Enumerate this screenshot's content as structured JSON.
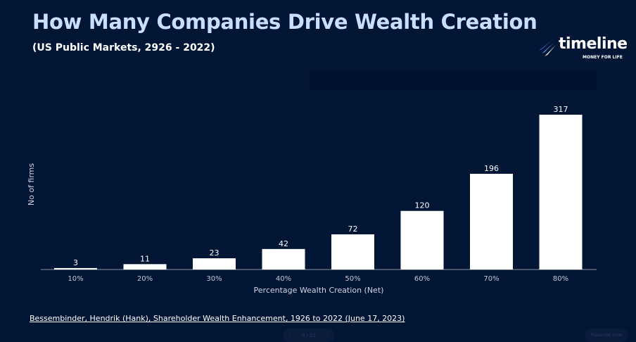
{
  "header": {
    "title": "How Many Companies Drive Wealth Creation",
    "subtitle": "(US Public Markets, 2926 - 2022)"
  },
  "logo": {
    "name": "timeline",
    "tagline": "MONEY FOR LIFE"
  },
  "chart_data": {
    "type": "bar",
    "categories": [
      "10%",
      "20%",
      "30%",
      "40%",
      "50%",
      "60%",
      "70%",
      "80%"
    ],
    "values": [
      3,
      11,
      23,
      42,
      72,
      120,
      196,
      317
    ],
    "xlabel": "Percentage Wealth Creation (Net)",
    "ylabel": "No of firms",
    "ylim": [
      0,
      330
    ],
    "grid": false,
    "bar_color": "#ffffff"
  },
  "source": "Bessembinder, Hendrik (Hank), Shareholder Wealth Enhancement, 1926 to 2022 (June 17, 2023)",
  "controls": {
    "page": "8 / 21",
    "prev": "‹",
    "next": "›",
    "presenter": "Presenter view"
  }
}
